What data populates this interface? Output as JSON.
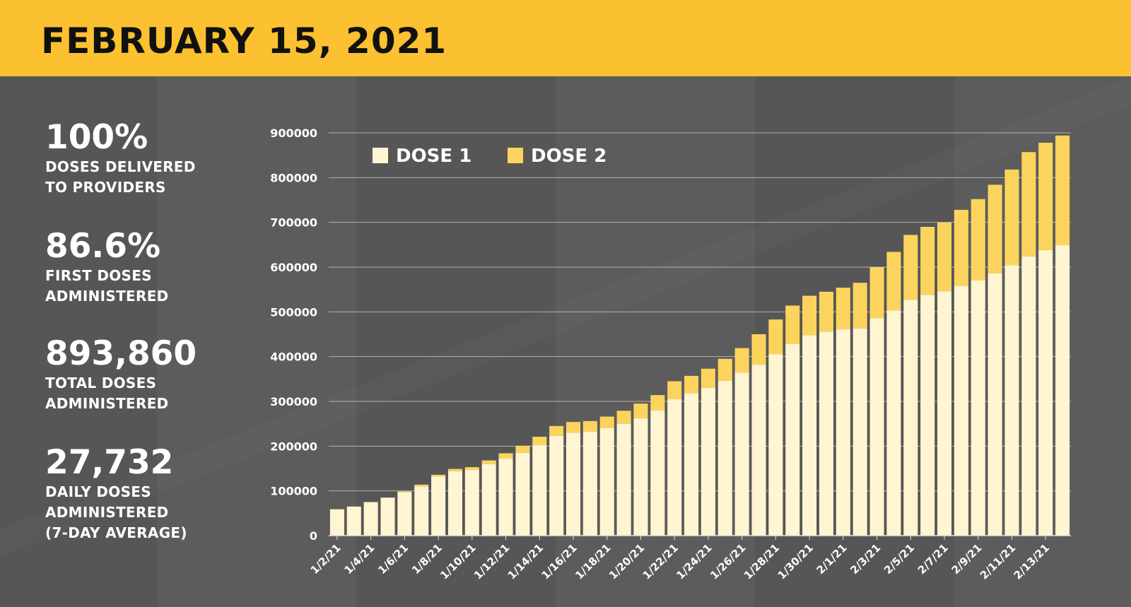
{
  "header": {
    "title": "FEBRUARY 15, 2021"
  },
  "stats": [
    {
      "value": "100%",
      "label_lines": [
        "DOSES DELIVERED",
        "TO PROVIDERS"
      ]
    },
    {
      "value": "86.6%",
      "label_lines": [
        "FIRST DOSES",
        "ADMINISTERED"
      ]
    },
    {
      "value": "893,860",
      "label_lines": [
        "TOTAL DOSES",
        "ADMINISTERED"
      ]
    },
    {
      "value": "27,732",
      "label_lines": [
        "DAILY DOSES",
        "ADMINISTERED",
        "(7-DAY AVERAGE)"
      ]
    }
  ],
  "colors": {
    "header_bg": "#fcc130",
    "dose1": "#fff5d3",
    "dose2": "#fcd45d",
    "background": "#565656"
  },
  "chart_data": {
    "type": "bar",
    "stacked": true,
    "title": "",
    "xlabel": "",
    "ylabel": "",
    "ylim": [
      0,
      900000
    ],
    "y_ticks": [
      0,
      100000,
      200000,
      300000,
      400000,
      500000,
      600000,
      700000,
      800000,
      900000
    ],
    "grid": true,
    "legend_position": "top-left",
    "categories": [
      "1/2/21",
      "1/3/21",
      "1/4/21",
      "1/5/21",
      "1/6/21",
      "1/7/21",
      "1/8/21",
      "1/9/21",
      "1/10/21",
      "1/11/21",
      "1/12/21",
      "1/13/21",
      "1/14/21",
      "1/15/21",
      "1/16/21",
      "1/17/21",
      "1/18/21",
      "1/19/21",
      "1/20/21",
      "1/21/21",
      "1/22/21",
      "1/23/21",
      "1/24/21",
      "1/25/21",
      "1/26/21",
      "1/27/21",
      "1/28/21",
      "1/29/21",
      "1/30/21",
      "1/31/21",
      "2/1/21",
      "2/2/21",
      "2/3/21",
      "2/4/21",
      "2/5/21",
      "2/6/21",
      "2/7/21",
      "2/8/21",
      "2/9/21",
      "2/10/21",
      "2/11/21",
      "2/12/21",
      "2/13/21",
      "2/14/21"
    ],
    "tick_labels": [
      "1/2/21",
      "1/4/21",
      "1/6/21",
      "1/8/21",
      "1/10/21",
      "1/12/21",
      "1/14/21",
      "1/16/21",
      "1/18/21",
      "1/20/21",
      "1/22/21",
      "1/24/21",
      "1/26/21",
      "1/28/21",
      "1/30/21",
      "2/1/21",
      "2/3/21",
      "2/5/21",
      "2/7/21",
      "2/9/21",
      "2/11/21",
      "2/13/21"
    ],
    "series": [
      {
        "name": "DOSE 1",
        "values": [
          59000,
          65000,
          75000,
          85000,
          97000,
          110000,
          132000,
          144000,
          147000,
          160000,
          172000,
          185000,
          202000,
          223000,
          230000,
          232000,
          240000,
          250000,
          262000,
          280000,
          305000,
          318000,
          330000,
          346000,
          364000,
          382000,
          405000,
          428000,
          448000,
          456000,
          461000,
          463000,
          486000,
          503000,
          527000,
          538000,
          546000,
          558000,
          570000,
          586000,
          604000,
          624000,
          638000,
          649000
        ]
      },
      {
        "name": "DOSE 2",
        "values": [
          0,
          0,
          0,
          0,
          2000,
          4000,
          4000,
          5000,
          6000,
          8000,
          12000,
          16000,
          19000,
          22000,
          24000,
          24000,
          26000,
          29000,
          33000,
          34000,
          40000,
          39000,
          43000,
          49000,
          55000,
          68000,
          78000,
          86000,
          88000,
          89000,
          93000,
          102000,
          114000,
          131000,
          145000,
          152000,
          154000,
          170000,
          182000,
          198000,
          214000,
          233000,
          240000,
          245000
        ]
      }
    ]
  }
}
